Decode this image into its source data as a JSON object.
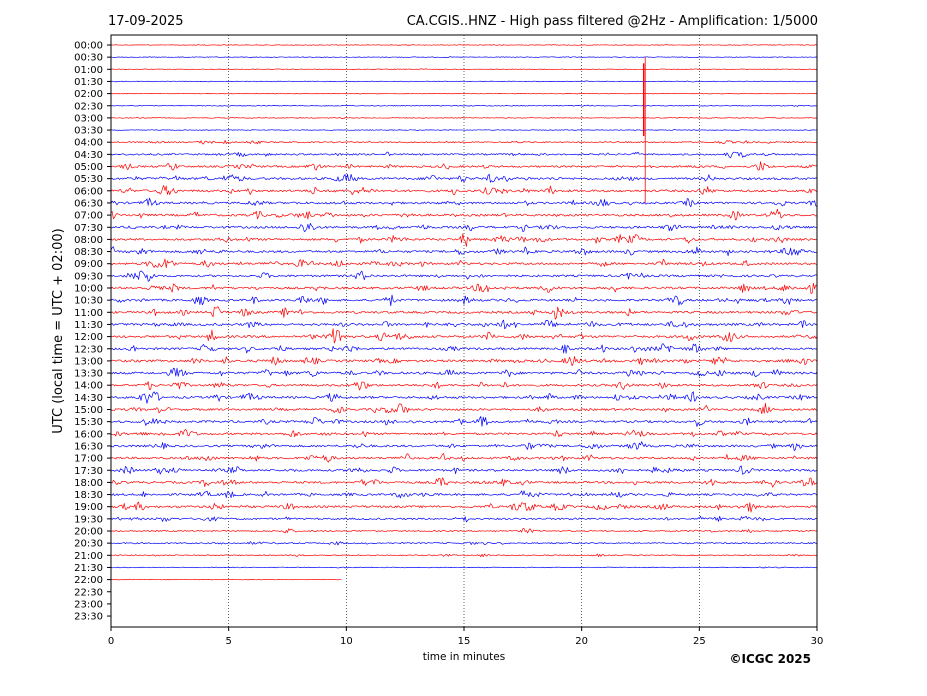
{
  "date_label": "17-09-2025",
  "title": "CA.CGIS..HNZ - High pass filtered @2Hz - Amplification: 1/5000",
  "copyright": "©ICGC 2025",
  "chart_data": {
    "type": "line",
    "subtype": "helicorder",
    "xlabel": "time in minutes",
    "ylabel": "UTC (local time = UTC + 02:00)",
    "xlim": [
      0,
      30
    ],
    "x_ticks": [
      "0",
      "5",
      "10",
      "15",
      "20",
      "25",
      "30"
    ],
    "grid": "vertical dotted lines at 5, 10, 15, 20, 25 minutes",
    "row_labels": [
      "00:00",
      "00:30",
      "01:00",
      "01:30",
      "02:00",
      "02:30",
      "03:00",
      "03:30",
      "04:00",
      "04:30",
      "05:00",
      "05:30",
      "06:00",
      "06:30",
      "07:00",
      "07:30",
      "08:00",
      "08:30",
      "09:00",
      "09:30",
      "10:00",
      "10:30",
      "11:00",
      "11:30",
      "12:00",
      "12:30",
      "13:00",
      "13:30",
      "14:00",
      "14:30",
      "15:00",
      "15:30",
      "16:00",
      "16:30",
      "17:00",
      "17:30",
      "18:00",
      "18:30",
      "19:00",
      "19:30",
      "20:00",
      "20:30",
      "21:00",
      "21:30",
      "22:00",
      "22:30",
      "23:00",
      "23:30"
    ],
    "trace_colors": [
      "#ff0000",
      "#0000ff"
    ],
    "row_activity": [
      0.05,
      0.08,
      0.08,
      0.1,
      0.05,
      0.12,
      0.1,
      0.08,
      0.35,
      0.5,
      0.6,
      0.75,
      0.75,
      0.7,
      0.75,
      0.75,
      0.75,
      0.75,
      0.75,
      0.7,
      0.75,
      0.75,
      0.75,
      0.8,
      0.8,
      0.75,
      0.8,
      0.75,
      0.7,
      0.75,
      0.7,
      0.75,
      0.7,
      0.7,
      0.7,
      0.7,
      0.75,
      0.7,
      0.75,
      0.55,
      0.35,
      0.35,
      0.25,
      0.12,
      0.03,
      0,
      0,
      0
    ],
    "data_end": "22:00 row at ~9.8 min",
    "events": [
      {
        "row": "01:00",
        "minute": 22.7,
        "description": "large spike spanning 00:30–06:30 rows"
      }
    ]
  }
}
